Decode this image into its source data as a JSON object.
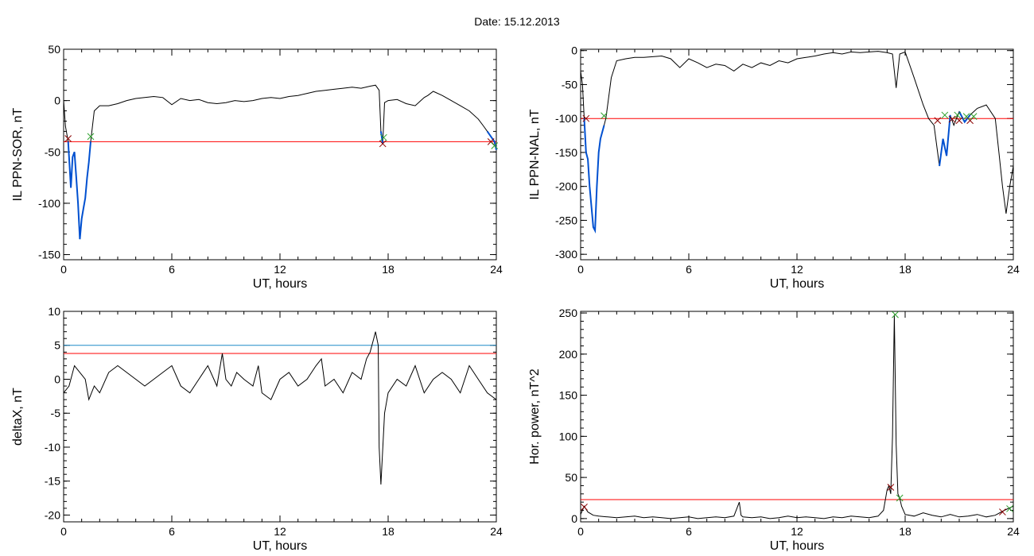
{
  "title": "Date:  15.12.2013",
  "colors": {
    "axis": "#000000",
    "data": "#000000",
    "threshold": "#ff0000",
    "threshold2": "#1e8cc8",
    "highlight": "#0050d0",
    "marker_start": "#8b0000",
    "marker_end": "#2ca02c"
  },
  "chart_data": [
    {
      "type": "line",
      "xlabel": "UT, hours",
      "ylabel": "IL PPN-SOR, nT",
      "xlim": [
        0,
        24
      ],
      "ylim": [
        -155,
        50
      ],
      "xticks": [
        "0",
        "6",
        "12",
        "18",
        "24"
      ],
      "yticks": [
        "-150",
        "-100",
        "-50",
        "0",
        "50"
      ],
      "thresholds": [
        {
          "y": -40,
          "color": "#ff0000"
        }
      ],
      "series": [
        {
          "x": [
            0,
            0.1,
            0.25,
            0.4,
            0.5,
            0.6,
            0.7,
            0.8,
            0.9,
            1.0,
            1.1,
            1.2,
            1.3,
            1.4,
            1.5,
            1.7,
            2.0,
            2.5,
            3.0,
            3.5,
            4.0,
            4.5,
            5.0,
            5.5,
            6.0,
            6.5,
            7.0,
            7.5,
            8.0,
            8.5,
            9.0,
            9.5,
            10.0,
            10.5,
            11.0,
            11.5,
            12.0,
            12.5,
            13.0,
            13.5,
            14.0,
            14.5,
            15.0,
            15.5,
            16.0,
            16.5,
            17.0,
            17.3,
            17.5,
            17.6,
            17.7,
            17.8,
            18.0,
            18.5,
            19.0,
            19.5,
            20.0,
            20.2,
            20.5,
            21.0,
            21.5,
            22.0,
            22.5,
            23.0,
            23.3,
            23.5,
            23.7,
            23.9,
            24.0
          ],
          "y": [
            0,
            -25,
            -40,
            -85,
            -55,
            -50,
            -75,
            -100,
            -135,
            -115,
            -105,
            -95,
            -75,
            -60,
            -40,
            -10,
            -5,
            -5,
            -3,
            0,
            2,
            3,
            4,
            3,
            -4,
            2,
            0,
            1,
            -2,
            -3,
            -2,
            0,
            -1,
            0,
            2,
            3,
            2,
            4,
            5,
            7,
            9,
            10,
            11,
            12,
            13,
            12,
            14,
            15,
            10,
            -30,
            -42,
            -2,
            0,
            1,
            -3,
            -5,
            3,
            5,
            9,
            5,
            0,
            -5,
            -10,
            -18,
            -25,
            -30,
            -35,
            -40,
            -48
          ]
        }
      ],
      "highlight_segments": [
        [
          0.2,
          1.5
        ],
        [
          17.6,
          17.75
        ],
        [
          23.5,
          24.0
        ]
      ],
      "markers_start": [
        [
          0.25,
          -37
        ],
        [
          17.7,
          -42
        ],
        [
          23.7,
          -40
        ]
      ],
      "markers_end": [
        [
          1.5,
          -35
        ],
        [
          17.75,
          -36
        ],
        [
          23.9,
          -44
        ]
      ]
    },
    {
      "type": "line",
      "xlabel": "UT, hours",
      "ylabel": "IL PPN-NAL, nT",
      "xlim": [
        0,
        24
      ],
      "ylim": [
        -308,
        2
      ],
      "xticks": [
        "0",
        "6",
        "12",
        "18",
        "24"
      ],
      "yticks": [
        "-300",
        "-250",
        "-200",
        "-150",
        "-100",
        "-50",
        "0"
      ],
      "thresholds": [
        {
          "y": -100,
          "color": "#ff0000"
        }
      ],
      "series": [
        {
          "x": [
            0,
            0.1,
            0.2,
            0.3,
            0.4,
            0.5,
            0.6,
            0.7,
            0.8,
            0.9,
            1.0,
            1.1,
            1.2,
            1.3,
            1.4,
            1.5,
            1.7,
            2.0,
            2.5,
            3.0,
            3.5,
            4.0,
            4.5,
            5.0,
            5.5,
            6.0,
            6.5,
            7.0,
            7.5,
            8.0,
            8.5,
            9.0,
            9.5,
            10.0,
            10.5,
            11.0,
            11.5,
            12.0,
            12.5,
            13.0,
            13.5,
            14.0,
            14.5,
            15.0,
            15.5,
            16.0,
            16.5,
            17.0,
            17.3,
            17.5,
            17.7,
            18.0,
            18.5,
            19.0,
            19.3,
            19.6,
            19.9,
            20.1,
            20.3,
            20.5,
            20.7,
            21.0,
            21.3,
            21.6,
            22.0,
            22.5,
            23.0,
            23.2,
            23.4,
            23.6,
            23.8,
            24.0
          ],
          "y": [
            -30,
            -50,
            -100,
            -150,
            -160,
            -200,
            -230,
            -260,
            -265,
            -200,
            -150,
            -130,
            -120,
            -110,
            -100,
            -80,
            -40,
            -15,
            -12,
            -10,
            -10,
            -9,
            -8,
            -12,
            -25,
            -12,
            -18,
            -25,
            -20,
            -22,
            -30,
            -20,
            -25,
            -18,
            -22,
            -15,
            -18,
            -12,
            -10,
            -8,
            -5,
            -3,
            -5,
            -2,
            -3,
            -2,
            -1,
            -3,
            -5,
            -55,
            -5,
            -2,
            -40,
            -80,
            -100,
            -110,
            -170,
            -130,
            -155,
            -95,
            -110,
            -90,
            -105,
            -95,
            -85,
            -80,
            -100,
            -150,
            -200,
            -240,
            -200,
            -170
          ]
        }
      ],
      "highlight_segments": [
        [
          0.2,
          1.3
        ],
        [
          19.7,
          20.6
        ],
        [
          20.9,
          21.6
        ]
      ],
      "markers_start": [
        [
          0.3,
          -100
        ],
        [
          19.8,
          -103
        ],
        [
          20.6,
          -101
        ],
        [
          21.0,
          -103
        ],
        [
          21.6,
          -103
        ]
      ],
      "markers_end": [
        [
          1.3,
          -96
        ],
        [
          20.2,
          -95
        ],
        [
          20.9,
          -95
        ],
        [
          21.4,
          -97
        ],
        [
          21.8,
          -97
        ]
      ]
    },
    {
      "type": "line",
      "xlabel": "UT, hours",
      "ylabel": "deltaX, nT",
      "xlim": [
        0,
        24
      ],
      "ylim": [
        -21,
        10
      ],
      "xticks": [
        "0",
        "6",
        "12",
        "18",
        "24"
      ],
      "yticks": [
        "-20",
        "-15",
        "-10",
        "-5",
        "0",
        "5",
        "10"
      ],
      "thresholds": [
        {
          "y": 5,
          "color": "#1e8cc8"
        },
        {
          "y": 3.8,
          "color": "#ff0000"
        }
      ],
      "series": [
        {
          "x": [
            0,
            0.3,
            0.6,
            0.9,
            1.2,
            1.4,
            1.7,
            2.0,
            2.5,
            3.0,
            3.5,
            4.0,
            4.5,
            5.0,
            5.5,
            6.0,
            6.5,
            7.0,
            7.5,
            8.0,
            8.5,
            8.8,
            9.0,
            9.3,
            9.6,
            10.0,
            10.5,
            10.8,
            11.0,
            11.5,
            12.0,
            12.5,
            13.0,
            13.5,
            14.0,
            14.3,
            14.5,
            15.0,
            15.5,
            16.0,
            16.5,
            16.8,
            17.0,
            17.2,
            17.3,
            17.45,
            17.5,
            17.6,
            17.8,
            18.0,
            18.5,
            19.0,
            19.5,
            20.0,
            20.5,
            21.0,
            21.5,
            22.0,
            22.5,
            23.0,
            23.5,
            24.0
          ],
          "y": [
            -2,
            -1,
            2,
            1,
            0,
            -3,
            -1,
            -2,
            1,
            2,
            1,
            0,
            -1,
            0,
            1,
            2,
            -1,
            -2,
            0,
            2,
            -1,
            3.8,
            0,
            -1,
            1,
            0,
            -1,
            2,
            -2,
            -3,
            0,
            1,
            -1,
            0,
            2,
            3,
            -1,
            0,
            -2,
            1,
            0,
            3,
            4,
            6,
            7,
            5,
            -10,
            -15.5,
            -5,
            -2,
            0,
            -1,
            2,
            -2,
            0,
            1,
            0,
            -2,
            2,
            0,
            -2,
            -3
          ]
        }
      ],
      "highlight_segments": [],
      "markers_start": [],
      "markers_end": []
    },
    {
      "type": "line",
      "xlabel": "UT, hours",
      "ylabel": "Hor. power, nT^2",
      "xlim": [
        0,
        24
      ],
      "ylim": [
        -4,
        252
      ],
      "xticks": [
        "0",
        "6",
        "12",
        "18",
        "24"
      ],
      "yticks": [
        "0",
        "50",
        "100",
        "150",
        "200",
        "250"
      ],
      "thresholds": [
        {
          "y": 23,
          "color": "#ff0000"
        }
      ],
      "series": [
        {
          "x": [
            0,
            0.2,
            0.4,
            0.7,
            1.0,
            1.5,
            2.0,
            2.5,
            3.0,
            3.5,
            4.0,
            4.5,
            5.0,
            5.5,
            6.0,
            6.5,
            7.0,
            7.5,
            8.0,
            8.5,
            8.8,
            8.9,
            9.0,
            9.5,
            10.0,
            10.5,
            11.0,
            11.5,
            12.0,
            12.5,
            13.0,
            13.5,
            14.0,
            14.5,
            15.0,
            15.5,
            16.0,
            16.5,
            16.8,
            17.0,
            17.1,
            17.2,
            17.3,
            17.4,
            17.5,
            17.6,
            17.7,
            17.8,
            18.0,
            18.5,
            19.0,
            19.5,
            20.0,
            20.5,
            21.0,
            21.5,
            22.0,
            22.5,
            23.0,
            23.5,
            24.0
          ],
          "y": [
            5,
            15,
            8,
            4,
            3,
            2,
            1,
            2,
            3,
            1,
            2,
            1,
            0,
            1,
            2,
            0,
            1,
            2,
            1,
            3,
            20,
            4,
            2,
            1,
            2,
            0,
            1,
            3,
            1,
            2,
            1,
            0,
            2,
            1,
            3,
            2,
            1,
            3,
            10,
            35,
            40,
            30,
            100,
            248,
            90,
            30,
            25,
            15,
            5,
            3,
            7,
            4,
            2,
            5,
            2,
            3,
            5,
            2,
            4,
            10,
            15
          ]
        }
      ],
      "highlight_segments": [],
      "markers_start": [
        [
          0.2,
          14
        ],
        [
          17.2,
          38
        ],
        [
          23.4,
          8
        ]
      ],
      "markers_end": [
        [
          17.45,
          248
        ],
        [
          17.7,
          25
        ],
        [
          23.8,
          12
        ]
      ]
    }
  ]
}
